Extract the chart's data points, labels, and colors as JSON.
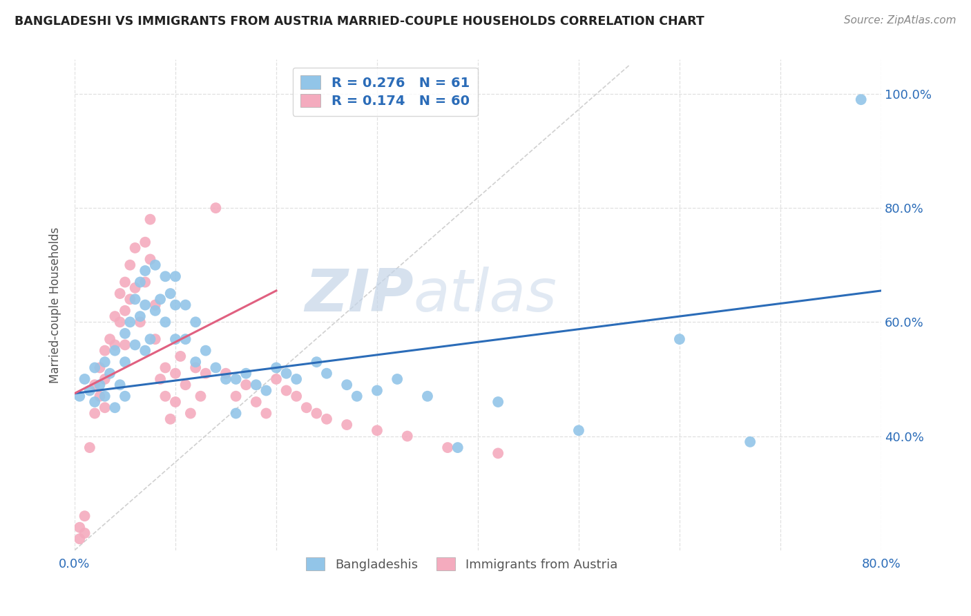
{
  "title": "BANGLADESHI VS IMMIGRANTS FROM AUSTRIA MARRIED-COUPLE HOUSEHOLDS CORRELATION CHART",
  "source": "Source: ZipAtlas.com",
  "ylabel": "Married-couple Households",
  "xlim": [
    0.0,
    0.8
  ],
  "ylim": [
    0.2,
    1.06
  ],
  "xticks": [
    0.0,
    0.1,
    0.2,
    0.3,
    0.4,
    0.5,
    0.6,
    0.7,
    0.8
  ],
  "ytick_positions": [
    0.4,
    0.6,
    0.8,
    1.0
  ],
  "ytick_labels": [
    "40.0%",
    "60.0%",
    "80.0%",
    "100.0%"
  ],
  "blue_R": 0.276,
  "blue_N": 61,
  "pink_R": 0.174,
  "pink_N": 60,
  "blue_color": "#92C5E8",
  "pink_color": "#F4ABBE",
  "blue_line_color": "#2B6CB8",
  "pink_line_color": "#E06080",
  "ref_line_color": "#D0D0D0",
  "legend_text_color": "#2B6CB8",
  "title_color": "#222222",
  "watermark_zip": "ZIP",
  "watermark_atlas": "atlas",
  "background_color": "#FFFFFF",
  "grid_color": "#E0E0E0",
  "blue_scatter_x": [
    0.005,
    0.01,
    0.015,
    0.02,
    0.02,
    0.025,
    0.03,
    0.03,
    0.035,
    0.04,
    0.04,
    0.045,
    0.05,
    0.05,
    0.05,
    0.055,
    0.06,
    0.06,
    0.065,
    0.065,
    0.07,
    0.07,
    0.07,
    0.075,
    0.08,
    0.08,
    0.085,
    0.09,
    0.09,
    0.095,
    0.1,
    0.1,
    0.1,
    0.11,
    0.11,
    0.12,
    0.12,
    0.13,
    0.14,
    0.15,
    0.16,
    0.16,
    0.17,
    0.18,
    0.19,
    0.2,
    0.21,
    0.22,
    0.24,
    0.25,
    0.27,
    0.28,
    0.3,
    0.32,
    0.35,
    0.38,
    0.42,
    0.5,
    0.6,
    0.67,
    0.78
  ],
  "blue_scatter_y": [
    0.47,
    0.5,
    0.48,
    0.52,
    0.46,
    0.49,
    0.53,
    0.47,
    0.51,
    0.55,
    0.45,
    0.49,
    0.58,
    0.53,
    0.47,
    0.6,
    0.64,
    0.56,
    0.67,
    0.61,
    0.69,
    0.63,
    0.55,
    0.57,
    0.7,
    0.62,
    0.64,
    0.68,
    0.6,
    0.65,
    0.68,
    0.63,
    0.57,
    0.63,
    0.57,
    0.6,
    0.53,
    0.55,
    0.52,
    0.5,
    0.5,
    0.44,
    0.51,
    0.49,
    0.48,
    0.52,
    0.51,
    0.5,
    0.53,
    0.51,
    0.49,
    0.47,
    0.48,
    0.5,
    0.47,
    0.38,
    0.46,
    0.41,
    0.57,
    0.39,
    0.99
  ],
  "pink_scatter_x": [
    0.005,
    0.005,
    0.01,
    0.01,
    0.015,
    0.02,
    0.02,
    0.025,
    0.025,
    0.03,
    0.03,
    0.03,
    0.035,
    0.04,
    0.04,
    0.045,
    0.045,
    0.05,
    0.05,
    0.05,
    0.055,
    0.055,
    0.06,
    0.06,
    0.065,
    0.07,
    0.07,
    0.075,
    0.075,
    0.08,
    0.08,
    0.085,
    0.09,
    0.09,
    0.095,
    0.1,
    0.1,
    0.105,
    0.11,
    0.115,
    0.12,
    0.125,
    0.13,
    0.14,
    0.15,
    0.16,
    0.17,
    0.18,
    0.19,
    0.2,
    0.21,
    0.22,
    0.23,
    0.24,
    0.25,
    0.27,
    0.3,
    0.33,
    0.37,
    0.42
  ],
  "pink_scatter_y": [
    0.24,
    0.22,
    0.26,
    0.23,
    0.38,
    0.49,
    0.44,
    0.52,
    0.47,
    0.55,
    0.5,
    0.45,
    0.57,
    0.61,
    0.56,
    0.65,
    0.6,
    0.67,
    0.62,
    0.56,
    0.7,
    0.64,
    0.73,
    0.66,
    0.6,
    0.74,
    0.67,
    0.78,
    0.71,
    0.63,
    0.57,
    0.5,
    0.52,
    0.47,
    0.43,
    0.51,
    0.46,
    0.54,
    0.49,
    0.44,
    0.52,
    0.47,
    0.51,
    0.8,
    0.51,
    0.47,
    0.49,
    0.46,
    0.44,
    0.5,
    0.48,
    0.47,
    0.45,
    0.44,
    0.43,
    0.42,
    0.41,
    0.4,
    0.38,
    0.37
  ]
}
